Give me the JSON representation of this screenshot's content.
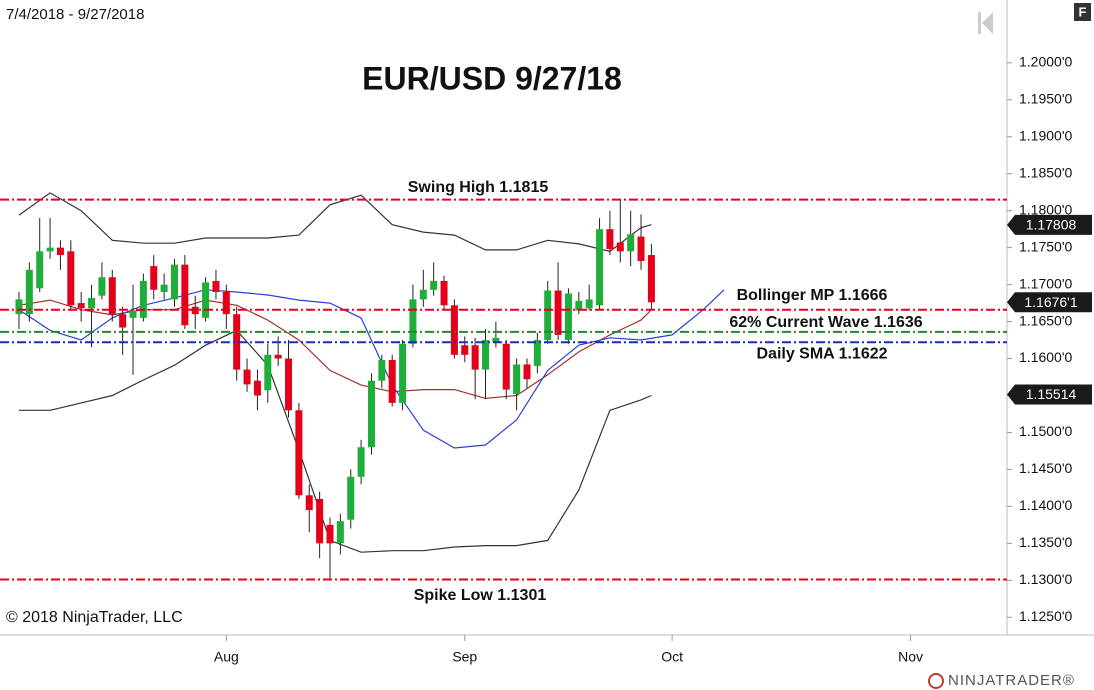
{
  "chart_data": {
    "type": "candlestick",
    "title": "EUR/USD 9/27/18",
    "date_range": "7/4/2018 - 9/27/2018",
    "copyright": "© 2018 NinjaTrader, LLC",
    "logo": "NINJATRADER®",
    "icon_label": "F",
    "up_color": "#1fae3a",
    "down_color": "#e4001b",
    "x": [
      0,
      1,
      2,
      3,
      4,
      5,
      6,
      7,
      8,
      9,
      10,
      11,
      12,
      13,
      14,
      15,
      16,
      17,
      18,
      19,
      20,
      21,
      22,
      23,
      24,
      25,
      26,
      27,
      28,
      29,
      30,
      31,
      32,
      33,
      34,
      35,
      36,
      37,
      38,
      39,
      40,
      41,
      42,
      43,
      44,
      45,
      46,
      47,
      48,
      49,
      50,
      51,
      52,
      53,
      54,
      55,
      56,
      57,
      58,
      59,
      60,
      61
    ],
    "open": [
      1.166,
      1.166,
      1.1695,
      1.1745,
      1.175,
      1.1745,
      1.1675,
      1.1668,
      1.1685,
      1.171,
      1.166,
      1.1655,
      1.1655,
      1.1725,
      1.169,
      1.168,
      1.1727,
      1.167,
      1.1655,
      1.1705,
      1.169,
      1.166,
      1.1585,
      1.157,
      1.1557,
      1.1605,
      1.16,
      1.153,
      1.1415,
      1.141,
      1.1375,
      1.135,
      1.1382,
      1.144,
      1.148,
      1.157,
      1.1598,
      1.154,
      1.162,
      1.168,
      1.1693,
      1.1705,
      1.1672,
      1.1618,
      1.1618,
      1.1585,
      1.1622,
      1.162,
      1.1552,
      1.1592,
      1.159,
      1.1625,
      1.1692,
      1.1625,
      1.1665,
      1.1668,
      1.1672,
      1.1775,
      1.1757,
      1.1745,
      1.1765,
      1.174
    ],
    "high": [
      1.169,
      1.173,
      1.179,
      1.179,
      1.176,
      1.176,
      1.169,
      1.17,
      1.173,
      1.172,
      1.167,
      1.17,
      1.1715,
      1.174,
      1.1715,
      1.1735,
      1.174,
      1.1685,
      1.171,
      1.172,
      1.17,
      1.167,
      1.16,
      1.1585,
      1.162,
      1.163,
      1.1625,
      1.154,
      1.143,
      1.142,
      1.1385,
      1.139,
      1.145,
      1.149,
      1.158,
      1.1605,
      1.1605,
      1.1625,
      1.17,
      1.172,
      1.173,
      1.1712,
      1.168,
      1.163,
      1.1628,
      1.164,
      1.165,
      1.1625,
      1.16,
      1.16,
      1.1635,
      1.1705,
      1.173,
      1.1695,
      1.169,
      1.17,
      1.179,
      1.18,
      1.1815,
      1.18,
      1.1795,
      1.1755
    ],
    "low": [
      1.164,
      1.165,
      1.169,
      1.1735,
      1.172,
      1.1665,
      1.165,
      1.1615,
      1.168,
      1.165,
      1.1605,
      1.1578,
      1.165,
      1.168,
      1.168,
      1.167,
      1.164,
      1.164,
      1.165,
      1.168,
      1.164,
      1.157,
      1.1555,
      1.153,
      1.154,
      1.159,
      1.152,
      1.141,
      1.1365,
      1.133,
      1.1301,
      1.1335,
      1.137,
      1.143,
      1.147,
      1.156,
      1.1535,
      1.153,
      1.1615,
      1.167,
      1.1685,
      1.1665,
      1.16,
      1.1595,
      1.1545,
      1.1545,
      1.1615,
      1.1545,
      1.153,
      1.156,
      1.158,
      1.162,
      1.1625,
      1.162,
      1.166,
      1.1665,
      1.1665,
      1.174,
      1.173,
      1.1725,
      1.172,
      1.1666
    ],
    "close": [
      1.168,
      1.172,
      1.1745,
      1.175,
      1.174,
      1.1672,
      1.1668,
      1.1682,
      1.171,
      1.166,
      1.1642,
      1.1665,
      1.1705,
      1.1693,
      1.17,
      1.1727,
      1.1645,
      1.166,
      1.1703,
      1.169,
      1.166,
      1.1585,
      1.1565,
      1.155,
      1.1605,
      1.16,
      1.153,
      1.1415,
      1.1395,
      1.135,
      1.135,
      1.138,
      1.144,
      1.148,
      1.157,
      1.1598,
      1.154,
      1.162,
      1.168,
      1.1693,
      1.1705,
      1.1672,
      1.1605,
      1.1605,
      1.1585,
      1.1625,
      1.1628,
      1.1558,
      1.1592,
      1.1572,
      1.1625,
      1.1692,
      1.1632,
      1.1688,
      1.1678,
      1.168,
      1.1775,
      1.1748,
      1.1745,
      1.1768,
      1.1732,
      1.16761
    ],
    "lines": [
      {
        "color": "#333333",
        "x": [
          0,
          3,
          6,
          9,
          12,
          15,
          18,
          21,
          24,
          27,
          30,
          33,
          36,
          39,
          42,
          45,
          48,
          51,
          54,
          57,
          60,
          61
        ],
        "values": [
          1.1794,
          1.1824,
          1.18,
          1.176,
          1.1756,
          1.1756,
          1.1763,
          1.1763,
          1.1763,
          1.1767,
          1.1808,
          1.1821,
          1.1781,
          1.1771,
          1.1767,
          1.1747,
          1.1747,
          1.176,
          1.1755,
          1.1745,
          1.1777,
          1.1781
        ]
      },
      {
        "color": "#a0322a",
        "x": [
          0,
          3,
          6,
          9,
          12,
          15,
          18,
          21,
          24,
          27,
          30,
          33,
          36,
          39,
          42,
          45,
          48,
          51,
          54,
          57,
          60,
          61
        ],
        "values": [
          1.1672,
          1.1679,
          1.1666,
          1.1659,
          1.1666,
          1.1666,
          1.1679,
          1.1672,
          1.1652,
          1.1625,
          1.1584,
          1.1564,
          1.1555,
          1.1558,
          1.1558,
          1.1546,
          1.155,
          1.1578,
          1.1609,
          1.1632,
          1.1652,
          1.1666
        ]
      },
      {
        "color": "#333333",
        "x": [
          0,
          3,
          6,
          9,
          12,
          15,
          18,
          21,
          24,
          27,
          30,
          33,
          36,
          39,
          42,
          45,
          48,
          51,
          54,
          57,
          60,
          61
        ],
        "values": [
          1.153,
          1.153,
          1.154,
          1.155,
          1.1571,
          1.1591,
          1.1618,
          1.1638,
          1.1591,
          1.1476,
          1.1354,
          1.1338,
          1.134,
          1.134,
          1.1345,
          1.1347,
          1.1347,
          1.1354,
          1.1422,
          1.153,
          1.1544,
          1.155
        ]
      },
      {
        "color": "#2b3fd6",
        "x": [
          0,
          3,
          6,
          9,
          12,
          15,
          18,
          21,
          24,
          27,
          30,
          33,
          36,
          39,
          42,
          45,
          48,
          51,
          54,
          57,
          60,
          63,
          66,
          68
        ],
        "values": [
          1.1666,
          1.1638,
          1.1625,
          1.1655,
          1.1672,
          1.1682,
          1.1693,
          1.169,
          1.1686,
          1.1679,
          1.1675,
          1.1655,
          1.1564,
          1.1503,
          1.1479,
          1.1483,
          1.1517,
          1.1584,
          1.1618,
          1.1628,
          1.1625,
          1.1632,
          1.1666,
          1.1693
        ]
      }
    ],
    "levels": [
      {
        "label": "Swing High 1.1815",
        "value": 1.1815,
        "color": "#e4001b"
      },
      {
        "label": "Bollinger MP 1.1666",
        "value": 1.1666,
        "color": "#e4001b"
      },
      {
        "label": "62% Current Wave 1.1636",
        "value": 1.1636,
        "color": "#1f8a2e"
      },
      {
        "label": "Daily SMA 1.1622",
        "value": 1.1622,
        "color": "#1a2fb8"
      },
      {
        "label": "Spike Low 1.1301",
        "value": 1.1301,
        "color": "#e4001b"
      }
    ],
    "price_tags": [
      {
        "value": 1.17808,
        "label": "1.17808"
      },
      {
        "value": 1.16761,
        "label": "1.1676'1"
      },
      {
        "value": 1.15514,
        "label": "1.15514"
      }
    ],
    "xlim": [
      -1.83,
      95.3
    ],
    "xticks": [
      {
        "value": 20,
        "label": "Aug"
      },
      {
        "value": 43,
        "label": "Sep"
      },
      {
        "value": 63,
        "label": "Oct"
      },
      {
        "value": 86,
        "label": "Nov"
      }
    ],
    "ylim": [
      1.1226,
      1.2085
    ],
    "yticks": [
      {
        "value": 1.2,
        "label": "1.2000'0"
      },
      {
        "value": 1.195,
        "label": "1.1950'0"
      },
      {
        "value": 1.19,
        "label": "1.1900'0"
      },
      {
        "value": 1.185,
        "label": "1.1850'0"
      },
      {
        "value": 1.18,
        "label": "1.1800'0"
      },
      {
        "value": 1.175,
        "label": "1.1750'0"
      },
      {
        "value": 1.17,
        "label": "1.1700'0"
      },
      {
        "value": 1.165,
        "label": "1.1650'0"
      },
      {
        "value": 1.16,
        "label": "1.1600'0"
      },
      {
        "value": 1.155,
        "label": "1.1550'0"
      },
      {
        "value": 1.15,
        "label": "1.1500'0"
      },
      {
        "value": 1.145,
        "label": "1.1450'0"
      },
      {
        "value": 1.14,
        "label": "1.1400'0"
      },
      {
        "value": 1.135,
        "label": "1.1350'0"
      },
      {
        "value": 1.13,
        "label": "1.1300'0"
      },
      {
        "value": 1.125,
        "label": "1.1250'0"
      }
    ],
    "grid": false
  }
}
